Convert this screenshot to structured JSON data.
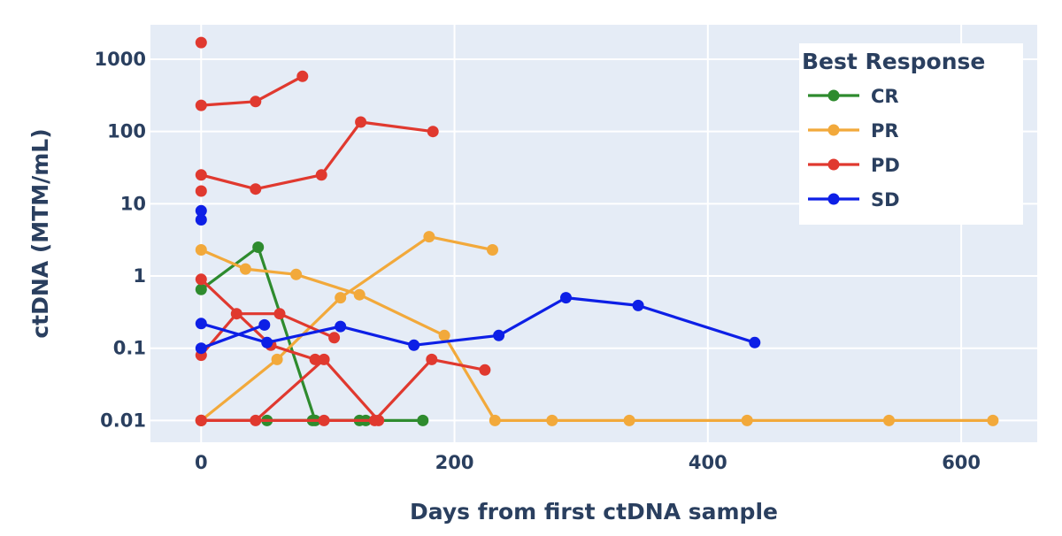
{
  "chart_data": {
    "type": "line",
    "xlabel": "Days from first ctDNA sample",
    "ylabel": "ctDNA (MTM/mL)",
    "y_scale": "log",
    "xlim": [
      -40,
      660
    ],
    "ylim": [
      0.005,
      3000
    ],
    "x_ticks": [
      {
        "value": 0,
        "label": "0"
      },
      {
        "value": 200,
        "label": "200"
      },
      {
        "value": 400,
        "label": "400"
      },
      {
        "value": 600,
        "label": "600"
      }
    ],
    "y_ticks": [
      {
        "value": 0.01,
        "label": "0.01"
      },
      {
        "value": 0.1,
        "label": "0.1"
      },
      {
        "value": 1,
        "label": "1"
      },
      {
        "value": 10,
        "label": "10"
      },
      {
        "value": 100,
        "label": "100"
      },
      {
        "value": 1000,
        "label": "1000"
      }
    ],
    "grid": true,
    "background": "#e5ecf6",
    "legend": {
      "title": "Best Response",
      "position": "top-right",
      "entries": [
        {
          "name": "CR",
          "color": "#2e8b2e"
        },
        {
          "name": "PR",
          "color": "#f2a93b"
        },
        {
          "name": "PD",
          "color": "#e0392f"
        },
        {
          "name": "SD",
          "color": "#0d1fe6"
        }
      ]
    },
    "series": [
      {
        "group": "CR",
        "color": "#2e8b2e",
        "points": [
          [
            0,
            0.65
          ],
          [
            45,
            2.5
          ],
          [
            90,
            0.01
          ],
          [
            130,
            0.01
          ],
          [
            175,
            0.01
          ]
        ]
      },
      {
        "group": "CR",
        "color": "#2e8b2e",
        "points": [
          [
            0,
            0.01
          ],
          [
            52,
            0.01
          ],
          [
            88,
            0.01
          ],
          [
            125,
            0.01
          ]
        ]
      },
      {
        "group": "PR",
        "color": "#f2a93b",
        "points": [
          [
            0,
            0.01
          ],
          [
            60,
            0.07
          ],
          [
            110,
            0.5
          ],
          [
            180,
            3.5
          ],
          [
            230,
            2.3
          ]
        ]
      },
      {
        "group": "PR",
        "color": "#f2a93b",
        "points": [
          [
            0,
            2.3
          ],
          [
            35,
            1.25
          ],
          [
            75,
            1.05
          ],
          [
            125,
            0.55
          ],
          [
            192,
            0.15
          ],
          [
            232,
            0.01
          ],
          [
            277,
            0.01
          ],
          [
            338,
            0.01
          ],
          [
            431,
            0.01
          ],
          [
            543,
            0.01
          ],
          [
            625,
            0.01
          ]
        ]
      },
      {
        "group": "PD",
        "color": "#e0392f",
        "points": [
          [
            0,
            1700
          ]
        ]
      },
      {
        "group": "PD",
        "color": "#e0392f",
        "points": [
          [
            0,
            230
          ],
          [
            43,
            260
          ],
          [
            80,
            580
          ]
        ]
      },
      {
        "group": "PD",
        "color": "#e0392f",
        "points": [
          [
            0,
            25
          ],
          [
            43,
            16
          ],
          [
            95,
            25
          ],
          [
            126,
            135
          ],
          [
            183,
            100
          ]
        ]
      },
      {
        "group": "PD",
        "color": "#e0392f",
        "points": [
          [
            0,
            15
          ]
        ]
      },
      {
        "group": "PD",
        "color": "#e0392f",
        "points": [
          [
            0,
            0.9
          ],
          [
            55,
            0.11
          ],
          [
            90,
            0.07
          ]
        ]
      },
      {
        "group": "PD",
        "color": "#e0392f",
        "points": [
          [
            0,
            0.08
          ],
          [
            28,
            0.3
          ],
          [
            62,
            0.3
          ],
          [
            105,
            0.14
          ]
        ]
      },
      {
        "group": "PD",
        "color": "#e0392f",
        "points": [
          [
            0,
            0.01
          ],
          [
            43,
            0.01
          ],
          [
            97,
            0.07
          ],
          [
            140,
            0.01
          ]
        ]
      },
      {
        "group": "PD",
        "color": "#e0392f",
        "points": [
          [
            0,
            0.01
          ],
          [
            97,
            0.01
          ],
          [
            137,
            0.01
          ],
          [
            182,
            0.07
          ],
          [
            224,
            0.05
          ]
        ]
      },
      {
        "group": "SD",
        "color": "#0d1fe6",
        "points": [
          [
            0,
            8
          ]
        ]
      },
      {
        "group": "SD",
        "color": "#0d1fe6",
        "points": [
          [
            0,
            6
          ]
        ]
      },
      {
        "group": "SD",
        "color": "#0d1fe6",
        "points": [
          [
            0,
            0.22
          ],
          [
            52,
            0.12
          ],
          [
            110,
            0.2
          ],
          [
            168,
            0.11
          ],
          [
            235,
            0.15
          ],
          [
            288,
            0.5
          ],
          [
            345,
            0.39
          ],
          [
            437,
            0.12
          ]
        ]
      },
      {
        "group": "SD",
        "color": "#0d1fe6",
        "points": [
          [
            0,
            0.1
          ],
          [
            50,
            0.21
          ]
        ]
      }
    ]
  }
}
